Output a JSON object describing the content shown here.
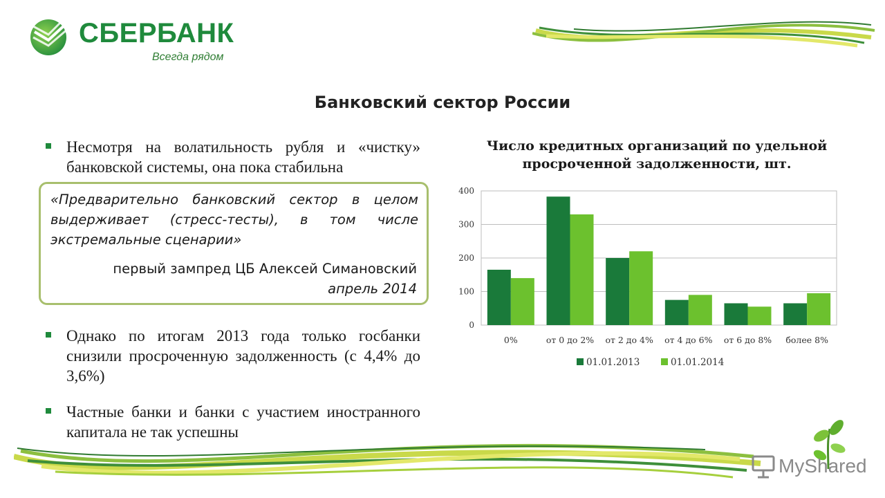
{
  "brand": {
    "name": "СБЕРБАНК",
    "tagline": "Всегда рядом",
    "color": "#1f8a3c"
  },
  "slide": {
    "title": "Банковский сектор России"
  },
  "bullets": [
    {
      "text": "Несмотря на волатильность рубля и «чистку» банковской системы, она пока стабильна"
    },
    {
      "text": "Однако по итогам 2013 года только госбанки снизили просроченную задолженность (с 4,4% до 3,6%)"
    },
    {
      "text": "Частные банки и банки с участием иностранного капитала не так успешны"
    }
  ],
  "quote": {
    "text": "«Предварительно банковский сектор в целом выдерживает (стресс-тесты), в том числе экстремальные сценарии»",
    "author": "первый зампред ЦБ Алексей Симановский",
    "date": "апрель 2014"
  },
  "chart_data": {
    "type": "bar",
    "title": "Число кредитных организаций по удельной просроченной задолженности, шт.",
    "categories": [
      "0%",
      "от 0 до 2%",
      "от 2 до 4%",
      "от 4 до 6%",
      "от 6 до 8%",
      "более 8%"
    ],
    "series": [
      {
        "name": "01.01.2013",
        "color": "#1a7a3a",
        "values": [
          165,
          383,
          200,
          75,
          65,
          65
        ]
      },
      {
        "name": "01.01.2014",
        "color": "#6cc12e",
        "values": [
          140,
          330,
          220,
          90,
          55,
          95
        ]
      }
    ],
    "ylim": [
      0,
      400
    ],
    "yticks": [
      "0",
      "100",
      "200",
      "300",
      "400"
    ],
    "grid": true,
    "legend": "bottom"
  },
  "watermark": {
    "text": "MyShared"
  }
}
